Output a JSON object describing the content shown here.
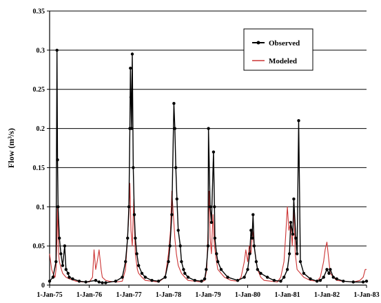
{
  "chart_data": {
    "type": "line",
    "title": "",
    "xlabel": "",
    "ylabel": "Flow (m³/s)",
    "ylim": [
      0,
      0.35
    ],
    "yticks": [
      "0",
      "0.05",
      "0.1",
      "0.15",
      "0.2",
      "0.25",
      "0.3",
      "0.35"
    ],
    "ytick_values": [
      0,
      0.05,
      0.1,
      0.15,
      0.2,
      0.25,
      0.3,
      0.35
    ],
    "xlim": [
      "1975-01-01",
      "1983-01-01"
    ],
    "xticks": [
      "1-Jan-75",
      "1-Jan-76",
      "1-Jan-77",
      "1-Jan-78",
      "1-Jan-79",
      "1-Jan-80",
      "1-Jan-81",
      "1-Jan-82",
      "1-Jan-83"
    ],
    "xtick_dates": [
      "1975-01-01",
      "1976-01-01",
      "1977-01-01",
      "1978-01-01",
      "1979-01-01",
      "1980-01-01",
      "1981-01-01",
      "1982-01-01",
      "1983-01-01"
    ],
    "grid": "horizontal",
    "legend": {
      "position": "top-right"
    },
    "series": [
      {
        "name": "Observed",
        "color": "#000000",
        "marker": "dot",
        "x": [
          "1975-01-01",
          "1975-02-01",
          "1975-03-01",
          "1975-03-10",
          "1975-03-15",
          "1975-03-20",
          "1975-04-01",
          "1975-04-15",
          "1975-05-01",
          "1975-05-20",
          "1975-06-01",
          "1975-06-20",
          "1975-07-01",
          "1975-08-01",
          "1975-10-01",
          "1975-12-01",
          "1976-03-01",
          "1976-04-01",
          "1976-05-01",
          "1976-06-01",
          "1976-09-01",
          "1976-11-01",
          "1976-12-01",
          "1976-12-20",
          "1977-01-01",
          "1977-01-10",
          "1977-01-15",
          "1977-01-20",
          "1977-01-25",
          "1977-02-01",
          "1977-02-10",
          "1977-02-20",
          "1977-03-01",
          "1977-03-15",
          "1977-04-01",
          "1977-05-01",
          "1977-06-01",
          "1977-08-01",
          "1977-10-01",
          "1977-12-01",
          "1978-01-01",
          "1978-01-15",
          "1978-02-01",
          "1978-02-20",
          "1978-03-01",
          "1978-03-10",
          "1978-03-20",
          "1978-04-01",
          "1978-04-20",
          "1978-05-01",
          "1978-05-20",
          "1978-06-01",
          "1978-07-01",
          "1978-09-01",
          "1978-11-01",
          "1978-12-01",
          "1978-12-15",
          "1979-01-01",
          "1979-01-05",
          "1979-01-20",
          "1979-02-01",
          "1979-02-20",
          "1979-03-01",
          "1979-03-05",
          "1979-03-20",
          "1979-04-01",
          "1979-05-01",
          "1979-07-01",
          "1979-10-01",
          "1979-12-01",
          "1980-01-01",
          "1980-01-20",
          "1980-02-01",
          "1980-02-10",
          "1980-02-20",
          "1980-03-01",
          "1980-03-20",
          "1980-04-01",
          "1980-05-01",
          "1980-07-01",
          "1980-09-01",
          "1980-11-01",
          "1980-12-01",
          "1981-01-01",
          "1981-01-20",
          "1981-02-01",
          "1981-02-20",
          "1981-03-01",
          "1981-03-20",
          "1981-04-01",
          "1981-04-15",
          "1981-05-01",
          "1981-06-01",
          "1981-08-01",
          "1981-10-01",
          "1981-11-01",
          "1981-12-01",
          "1982-01-01",
          "1982-01-20",
          "1982-02-01",
          "1982-03-01",
          "1982-04-01",
          "1982-06-01",
          "1982-09-01",
          "1982-12-01",
          "1983-01-01"
        ],
        "y": [
          0.005,
          0.01,
          0.03,
          0.3,
          0.16,
          0.1,
          0.06,
          0.04,
          0.025,
          0.05,
          0.02,
          0.015,
          0.01,
          0.008,
          0.005,
          0.004,
          0.006,
          0.004,
          0.003,
          0.003,
          0.005,
          0.01,
          0.03,
          0.06,
          0.1,
          0.2,
          0.277,
          0.24,
          0.2,
          0.295,
          0.15,
          0.09,
          0.06,
          0.04,
          0.025,
          0.015,
          0.01,
          0.006,
          0.005,
          0.01,
          0.03,
          0.05,
          0.09,
          0.232,
          0.2,
          0.15,
          0.11,
          0.07,
          0.05,
          0.03,
          0.02,
          0.015,
          0.01,
          0.006,
          0.005,
          0.008,
          0.02,
          0.05,
          0.2,
          0.1,
          0.08,
          0.17,
          0.1,
          0.06,
          0.04,
          0.03,
          0.02,
          0.01,
          0.006,
          0.01,
          0.02,
          0.04,
          0.07,
          0.06,
          0.09,
          0.05,
          0.03,
          0.02,
          0.015,
          0.01,
          0.006,
          0.005,
          0.01,
          0.02,
          0.04,
          0.08,
          0.065,
          0.11,
          0.06,
          0.04,
          0.21,
          0.03,
          0.015,
          0.008,
          0.005,
          0.006,
          0.01,
          0.02,
          0.015,
          0.02,
          0.01,
          0.008,
          0.005,
          0.004,
          0.004,
          0.005
        ]
      },
      {
        "name": "Modeled",
        "color": "#cc3333",
        "marker": "none",
        "x": [
          "1975-01-01",
          "1975-01-20",
          "1975-02-01",
          "1975-02-20",
          "1975-03-01",
          "1975-03-10",
          "1975-03-15",
          "1975-03-25",
          "1975-04-01",
          "1975-04-20",
          "1975-05-01",
          "1975-06-01",
          "1975-07-01",
          "1975-09-01",
          "1975-11-01",
          "1976-01-01",
          "1976-02-01",
          "1976-02-15",
          "1976-03-01",
          "1976-03-15",
          "1976-04-01",
          "1976-04-20",
          "1976-05-01",
          "1976-06-01",
          "1976-07-01",
          "1976-09-01",
          "1976-11-01",
          "1976-12-01",
          "1976-12-15",
          "1977-01-01",
          "1977-01-10",
          "1977-01-20",
          "1977-02-01",
          "1977-02-15",
          "1977-03-01",
          "1977-03-20",
          "1977-04-01",
          "1977-05-01",
          "1977-06-01",
          "1977-08-01",
          "1977-10-01",
          "1977-12-01",
          "1978-01-01",
          "1978-01-20",
          "1978-02-01",
          "1978-02-15",
          "1978-03-01",
          "1978-03-15",
          "1978-04-01",
          "1978-05-01",
          "1978-06-01",
          "1978-07-01",
          "1978-09-01",
          "1978-11-01",
          "1978-12-01",
          "1978-12-20",
          "1979-01-01",
          "1979-01-10",
          "1979-01-20",
          "1979-02-01",
          "1979-02-15",
          "1979-03-01",
          "1979-03-20",
          "1979-04-01",
          "1979-05-01",
          "1979-06-01",
          "1979-08-01",
          "1979-10-01",
          "1979-11-01",
          "1979-12-01",
          "1979-12-15",
          "1980-01-01",
          "1980-01-15",
          "1980-02-01",
          "1980-02-15",
          "1980-03-01",
          "1980-03-20",
          "1980-04-01",
          "1980-05-01",
          "1980-06-01",
          "1980-08-01",
          "1980-10-01",
          "1980-11-01",
          "1980-12-01",
          "1980-12-15",
          "1981-01-01",
          "1981-01-15",
          "1981-02-01",
          "1981-02-15",
          "1981-03-01",
          "1981-03-15",
          "1981-04-01",
          "1981-05-01",
          "1981-06-01",
          "1981-08-01",
          "1981-10-01",
          "1981-11-01",
          "1981-12-01",
          "1981-12-15",
          "1982-01-01",
          "1982-01-20",
          "1982-02-01",
          "1982-03-01",
          "1982-04-01",
          "1982-06-01",
          "1982-09-01",
          "1982-11-01",
          "1982-12-01",
          "1982-12-20",
          "1983-01-01"
        ],
        "y": [
          0.04,
          0.02,
          0.015,
          0.01,
          0.02,
          0.06,
          0.1,
          0.04,
          0.03,
          0.02,
          0.015,
          0.01,
          0.008,
          0.005,
          0.004,
          0.004,
          0.01,
          0.045,
          0.02,
          0.03,
          0.045,
          0.02,
          0.01,
          0.006,
          0.005,
          0.004,
          0.005,
          0.02,
          0.05,
          0.09,
          0.13,
          0.07,
          0.05,
          0.11,
          0.04,
          0.02,
          0.015,
          0.01,
          0.006,
          0.005,
          0.004,
          0.01,
          0.04,
          0.07,
          0.12,
          0.09,
          0.06,
          0.04,
          0.025,
          0.015,
          0.01,
          0.006,
          0.005,
          0.004,
          0.006,
          0.02,
          0.07,
          0.12,
          0.06,
          0.04,
          0.09,
          0.05,
          0.03,
          0.02,
          0.015,
          0.01,
          0.006,
          0.005,
          0.01,
          0.03,
          0.045,
          0.03,
          0.05,
          0.04,
          0.07,
          0.05,
          0.03,
          0.02,
          0.01,
          0.006,
          0.005,
          0.004,
          0.01,
          0.03,
          0.06,
          0.1,
          0.07,
          0.08,
          0.05,
          0.1,
          0.04,
          0.02,
          0.015,
          0.01,
          0.006,
          0.005,
          0.01,
          0.03,
          0.045,
          0.055,
          0.03,
          0.015,
          0.01,
          0.006,
          0.005,
          0.004,
          0.006,
          0.01,
          0.02,
          0.02
        ]
      }
    ]
  }
}
